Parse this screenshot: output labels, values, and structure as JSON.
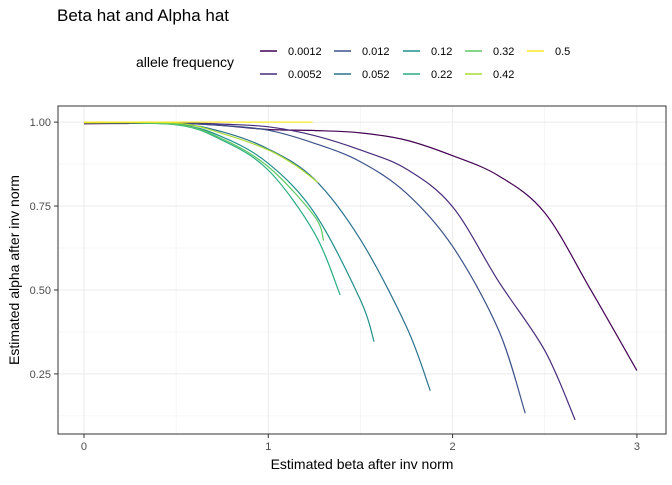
{
  "chart_data": {
    "type": "line",
    "title": "Beta hat and Alpha hat",
    "xlabel": "Estimated beta after inv norm",
    "ylabel": "Estimated alpha after inv norm",
    "xlim": [
      -0.141,
      3.158
    ],
    "ylim": [
      0.071,
      1.048
    ],
    "xticks": [
      0,
      1,
      2,
      3
    ],
    "xtick_labels": [
      "0",
      "1",
      "2",
      "3"
    ],
    "yticks": [
      0.25,
      0.5,
      0.75,
      1.0
    ],
    "ytick_labels": [
      "0.25",
      "0.50",
      "0.75",
      "1.00"
    ],
    "grid": true,
    "legend": {
      "title": "allele frequency",
      "placement": "top"
    },
    "series": [
      {
        "name": "0.0012",
        "color": "#440154",
        "points": [
          [
            0,
            0.995
          ],
          [
            0.25,
            0.996
          ],
          [
            0.5,
            0.997
          ],
          [
            0.75,
            0.99
          ],
          [
            1,
            0.978
          ],
          [
            1.25,
            0.975
          ],
          [
            1.5,
            0.968
          ],
          [
            1.75,
            0.946
          ],
          [
            2,
            0.9
          ],
          [
            2.25,
            0.84
          ],
          [
            2.5,
            0.73
          ],
          [
            2.75,
            0.5
          ],
          [
            3,
            0.26
          ]
        ]
      },
      {
        "name": "0.0052",
        "color": "#472D7B",
        "points": [
          [
            0,
            0.997
          ],
          [
            0.5,
            0.998
          ],
          [
            0.75,
            0.994
          ],
          [
            1,
            0.986
          ],
          [
            1.25,
            0.96
          ],
          [
            1.5,
            0.917
          ],
          [
            1.75,
            0.86
          ],
          [
            2,
            0.748
          ],
          [
            2.25,
            0.525
          ],
          [
            2.5,
            0.32
          ],
          [
            2.665,
            0.113
          ]
        ]
      },
      {
        "name": "0.012",
        "color": "#3B528B",
        "points": [
          [
            0,
            0.998
          ],
          [
            0.5,
            0.997
          ],
          [
            0.75,
            0.99
          ],
          [
            1,
            0.976
          ],
          [
            1.25,
            0.937
          ],
          [
            1.5,
            0.882
          ],
          [
            1.75,
            0.788
          ],
          [
            2,
            0.63
          ],
          [
            2.25,
            0.38
          ],
          [
            2.394,
            0.133
          ]
        ]
      },
      {
        "name": "0.052",
        "color": "#2C728E",
        "points": [
          [
            0,
            0.998
          ],
          [
            0.5,
            0.995
          ],
          [
            0.75,
            0.971
          ],
          [
            1,
            0.92
          ],
          [
            1.25,
            0.83
          ],
          [
            1.5,
            0.65
          ],
          [
            1.75,
            0.39
          ],
          [
            1.879,
            0.2
          ]
        ]
      },
      {
        "name": "0.12",
        "color": "#21908C",
        "points": [
          [
            0,
            0.998
          ],
          [
            0.5,
            0.993
          ],
          [
            0.75,
            0.956
          ],
          [
            1,
            0.877
          ],
          [
            1.25,
            0.73
          ],
          [
            1.5,
            0.47
          ],
          [
            1.574,
            0.346
          ]
        ]
      },
      {
        "name": "0.22",
        "color": "#27AD81",
        "points": [
          [
            0,
            0.998
          ],
          [
            0.5,
            0.992
          ],
          [
            0.75,
            0.946
          ],
          [
            1,
            0.857
          ],
          [
            1.25,
            0.67
          ],
          [
            1.39,
            0.485
          ]
        ]
      },
      {
        "name": "0.32",
        "color": "#5DC863",
        "points": [
          [
            0,
            0.998
          ],
          [
            0.5,
            0.993
          ],
          [
            0.75,
            0.95
          ],
          [
            1,
            0.867
          ],
          [
            1.25,
            0.72
          ],
          [
            1.3,
            0.647
          ]
        ]
      },
      {
        "name": "0.42",
        "color": "#AADC32",
        "points": [
          [
            0,
            0.998
          ],
          [
            0.5,
            0.997
          ],
          [
            0.75,
            0.966
          ],
          [
            1,
            0.917
          ],
          [
            1.15,
            0.87
          ],
          [
            1.27,
            0.82
          ]
        ]
      },
      {
        "name": "0.5",
        "color": "#FDE725",
        "points": [
          [
            0,
            1.0
          ],
          [
            0.5,
            1.0
          ],
          [
            1,
            1.0
          ],
          [
            1.24,
            1.0
          ]
        ]
      }
    ]
  }
}
